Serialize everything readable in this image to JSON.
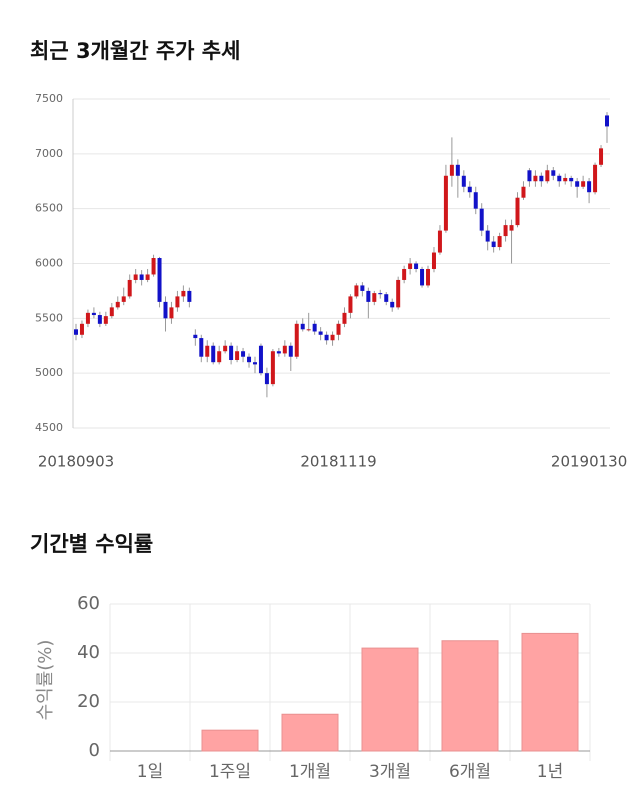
{
  "chart_data": [
    {
      "type": "candlestick",
      "title": "최근 3개월간 주가 추세",
      "categories": [
        "20180903",
        null,
        null,
        null,
        null,
        null,
        null,
        null,
        null,
        null,
        null,
        null,
        null,
        null,
        null,
        null,
        null,
        null,
        null,
        null,
        null,
        null,
        null,
        null,
        null,
        null,
        null,
        null,
        null,
        null,
        null,
        null,
        null,
        null,
        null,
        null,
        null,
        null,
        null,
        null,
        null,
        null,
        null,
        null,
        "20181119",
        null,
        null,
        null,
        null,
        null,
        null,
        null,
        null,
        null,
        null,
        null,
        null,
        null,
        null,
        null,
        null,
        null,
        null,
        null,
        null,
        null,
        null,
        null,
        null,
        null,
        null,
        null,
        null,
        null,
        null,
        null,
        null,
        null,
        null,
        null,
        null,
        null,
        null,
        null,
        null,
        null,
        "20190130",
        null,
        null,
        null
      ],
      "ohlc": [
        [
          5400,
          5450,
          5300,
          5350
        ],
        [
          5350,
          5480,
          5320,
          5450
        ],
        [
          5450,
          5580,
          5420,
          5550
        ],
        [
          5550,
          5600,
          5500,
          5530
        ],
        [
          5530,
          5560,
          5420,
          5450
        ],
        [
          5450,
          5560,
          5430,
          5520
        ],
        [
          5520,
          5640,
          5500,
          5600
        ],
        [
          5600,
          5700,
          5580,
          5650
        ],
        [
          5650,
          5780,
          5620,
          5700
        ],
        [
          5700,
          5900,
          5680,
          5850
        ],
        [
          5850,
          5950,
          5820,
          5900
        ],
        [
          5900,
          5940,
          5800,
          5850
        ],
        [
          5850,
          5950,
          5830,
          5900
        ],
        [
          5900,
          6080,
          5880,
          6050
        ],
        [
          6050,
          6060,
          5600,
          5650
        ],
        [
          5650,
          5700,
          5380,
          5500
        ],
        [
          5500,
          5650,
          5450,
          5600
        ],
        [
          5600,
          5750,
          5560,
          5700
        ],
        [
          5700,
          5800,
          5650,
          5750
        ],
        [
          5750,
          5780,
          5600,
          5650
        ],
        [
          5350,
          5400,
          5250,
          5320
        ],
        [
          5320,
          5350,
          5100,
          5150
        ],
        [
          5150,
          5300,
          5100,
          5250
        ],
        [
          5250,
          5280,
          5080,
          5100
        ],
        [
          5100,
          5250,
          5080,
          5200
        ],
        [
          5200,
          5300,
          5180,
          5250
        ],
        [
          5250,
          5280,
          5080,
          5120
        ],
        [
          5120,
          5250,
          5100,
          5200
        ],
        [
          5200,
          5230,
          5100,
          5150
        ],
        [
          5150,
          5180,
          5050,
          5100
        ],
        [
          5100,
          5150,
          5000,
          5080
        ],
        [
          5250,
          5270,
          4980,
          5000
        ],
        [
          5000,
          5050,
          4780,
          4900
        ],
        [
          4900,
          5220,
          4880,
          5200
        ],
        [
          5200,
          5230,
          5150,
          5180
        ],
        [
          5180,
          5300,
          5150,
          5250
        ],
        [
          5250,
          5280,
          5020,
          5150
        ],
        [
          5150,
          5480,
          5130,
          5450
        ],
        [
          5450,
          5500,
          5380,
          5400
        ],
        [
          5400,
          5550,
          5380,
          5400
        ],
        [
          5450,
          5480,
          5350,
          5380
        ],
        [
          5380,
          5420,
          5300,
          5350
        ],
        [
          5350,
          5380,
          5260,
          5300
        ],
        [
          5300,
          5380,
          5250,
          5350
        ],
        [
          5350,
          5480,
          5300,
          5450
        ],
        [
          5450,
          5600,
          5420,
          5550
        ],
        [
          5550,
          5720,
          5500,
          5700
        ],
        [
          5700,
          5820,
          5680,
          5800
        ],
        [
          5800,
          5830,
          5700,
          5750
        ],
        [
          5750,
          5780,
          5500,
          5650
        ],
        [
          5650,
          5750,
          5620,
          5730
        ],
        [
          5730,
          5760,
          5680,
          5720
        ],
        [
          5720,
          5740,
          5620,
          5650
        ],
        [
          5650,
          5680,
          5560,
          5600
        ],
        [
          5600,
          5880,
          5580,
          5850
        ],
        [
          5850,
          5980,
          5820,
          5950
        ],
        [
          5950,
          6050,
          5900,
          6000
        ],
        [
          6000,
          6020,
          5920,
          5950
        ],
        [
          5950,
          5970,
          5780,
          5800
        ],
        [
          5800,
          5980,
          5780,
          5950
        ],
        [
          5950,
          6150,
          5920,
          6100
        ],
        [
          6100,
          6350,
          6080,
          6300
        ],
        [
          6300,
          6900,
          6280,
          6800
        ],
        [
          6800,
          7150,
          6700,
          6900
        ],
        [
          6900,
          6950,
          6600,
          6800
        ],
        [
          6800,
          6850,
          6650,
          6700
        ],
        [
          6700,
          6750,
          6600,
          6650
        ],
        [
          6650,
          6700,
          6450,
          6500
        ],
        [
          6500,
          6550,
          6250,
          6300
        ],
        [
          6300,
          6350,
          6120,
          6200
        ],
        [
          6200,
          6250,
          6100,
          6150
        ],
        [
          6150,
          6280,
          6120,
          6250
        ],
        [
          6250,
          6400,
          6200,
          6350
        ],
        [
          6300,
          6400,
          6000,
          6350
        ],
        [
          6350,
          6650,
          6330,
          6600
        ],
        [
          6600,
          6750,
          6580,
          6700
        ],
        [
          6850,
          6870,
          6700,
          6750
        ],
        [
          6750,
          6850,
          6700,
          6800
        ],
        [
          6800,
          6830,
          6700,
          6750
        ],
        [
          6750,
          6900,
          6730,
          6850
        ],
        [
          6850,
          6880,
          6760,
          6800
        ],
        [
          6800,
          6820,
          6700,
          6750
        ],
        [
          6750,
          6820,
          6720,
          6780
        ],
        [
          6780,
          6800,
          6700,
          6750
        ],
        [
          6750,
          6780,
          6600,
          6700
        ],
        [
          6700,
          6800,
          6680,
          6750
        ],
        [
          6750,
          6780,
          6550,
          6650
        ],
        [
          6650,
          6920,
          6630,
          6900
        ],
        [
          6900,
          7080,
          6880,
          7050
        ],
        [
          7350,
          7380,
          7100,
          7250
        ]
      ],
      "up_color": "#d0171b",
      "down_color": "#1212c8",
      "ylim": [
        4500,
        7500
      ],
      "yticks": [
        4500,
        5000,
        5500,
        6000,
        6500,
        7000,
        7500
      ],
      "grid": true
    },
    {
      "type": "bar",
      "title": "기간별 수익률",
      "ylabel": "수익률(%)",
      "categories": [
        "1일",
        "1주일",
        "1개월",
        "3개월",
        "6개월",
        "1년"
      ],
      "values": [
        0,
        8.5,
        15,
        42,
        45,
        48
      ],
      "color": "#ffa3a3",
      "ylim": [
        0,
        60
      ],
      "yticks": [
        0,
        20,
        40,
        60
      ],
      "grid": true
    }
  ]
}
